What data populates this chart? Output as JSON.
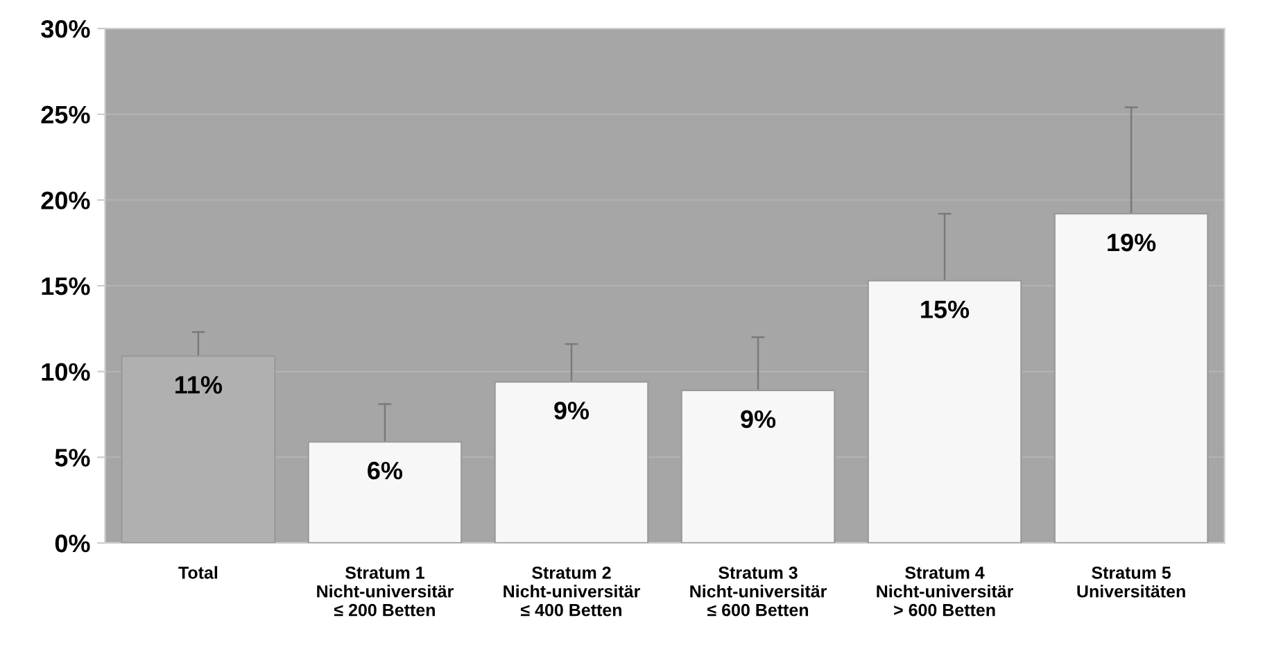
{
  "chart_data": {
    "type": "bar",
    "categories": [
      "Total",
      "Stratum 1\nNicht-universitär\n≤ 200 Betten",
      "Stratum 2\nNicht-universitär\n≤ 400 Betten",
      "Stratum 3\nNicht-universitär\n≤ 600 Betten",
      "Stratum 4\nNicht-universitär\n> 600 Betten",
      "Stratum 5\nUniversitäten"
    ],
    "values": [
      10.9,
      5.9,
      9.4,
      8.9,
      15.3,
      19.2
    ],
    "colors": [
      "#b0b0b0",
      "#f7f7f7",
      "#f7f7f7",
      "#f7f7f7",
      "#f7f7f7",
      "#f7f7f7"
    ],
    "errors": [
      [
        10.9,
        12.3
      ],
      [
        5.9,
        8.1
      ],
      [
        9.4,
        11.6
      ],
      [
        8.9,
        12.0
      ],
      [
        15.3,
        19.2
      ],
      [
        19.2,
        25.4
      ]
    ],
    "value_labels": [
      "11%",
      "6%",
      "9%",
      "9%",
      "15%",
      "19%"
    ],
    "ylim": [
      0,
      30
    ],
    "yticks": [
      {
        "value": 0,
        "label": "0%"
      },
      {
        "value": 5,
        "label": "5%"
      },
      {
        "value": 10,
        "label": "10%"
      },
      {
        "value": 15,
        "label": "15%"
      },
      {
        "value": 20,
        "label": "20%"
      },
      {
        "value": 25,
        "label": "25%"
      },
      {
        "value": 30,
        "label": "30%"
      }
    ],
    "grid": "y"
  }
}
